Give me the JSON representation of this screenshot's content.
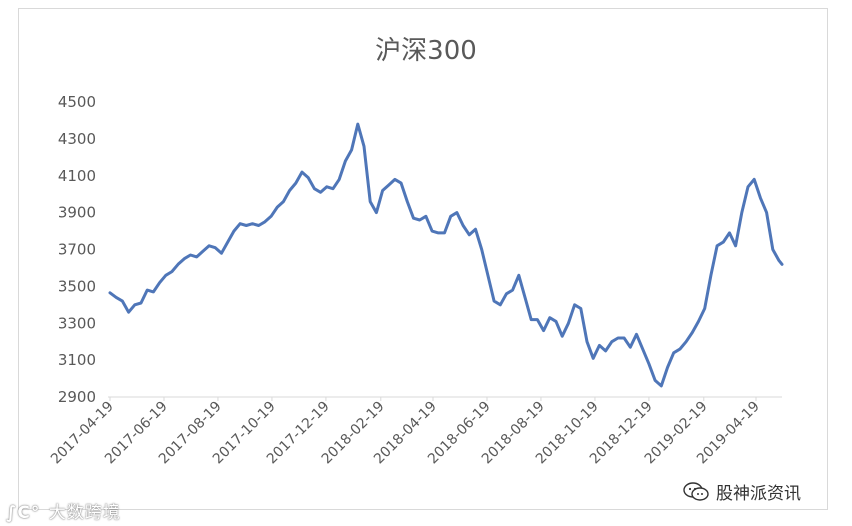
{
  "chart_data": {
    "type": "line",
    "title": "沪深300",
    "xlabel": "",
    "ylabel": "",
    "ylim": [
      2900,
      4500
    ],
    "yticks": [
      2900,
      3100,
      3300,
      3500,
      3700,
      3900,
      4100,
      4300,
      4500
    ],
    "xticks": [
      "2017-04-19",
      "2017-06-19",
      "2017-08-19",
      "2017-10-19",
      "2017-12-19",
      "2018-02-19",
      "2018-04-19",
      "2018-06-19",
      "2018-08-19",
      "2018-10-19",
      "2018-12-19",
      "2019-02-19",
      "2019-04-19"
    ],
    "grid": false,
    "line_color": "#4f76b8",
    "series": [
      {
        "name": "",
        "points": [
          [
            "2017-04-19",
            3465
          ],
          [
            "2017-04-26",
            3440
          ],
          [
            "2017-05-03",
            3420
          ],
          [
            "2017-05-10",
            3360
          ],
          [
            "2017-05-17",
            3400
          ],
          [
            "2017-05-24",
            3410
          ],
          [
            "2017-05-31",
            3480
          ],
          [
            "2017-06-07",
            3470
          ],
          [
            "2017-06-14",
            3520
          ],
          [
            "2017-06-21",
            3560
          ],
          [
            "2017-06-28",
            3580
          ],
          [
            "2017-07-05",
            3620
          ],
          [
            "2017-07-12",
            3650
          ],
          [
            "2017-07-19",
            3670
          ],
          [
            "2017-07-26",
            3660
          ],
          [
            "2017-08-02",
            3690
          ],
          [
            "2017-08-09",
            3720
          ],
          [
            "2017-08-16",
            3710
          ],
          [
            "2017-08-23",
            3680
          ],
          [
            "2017-08-30",
            3740
          ],
          [
            "2017-09-06",
            3800
          ],
          [
            "2017-09-13",
            3840
          ],
          [
            "2017-09-20",
            3830
          ],
          [
            "2017-09-27",
            3840
          ],
          [
            "2017-10-04",
            3830
          ],
          [
            "2017-10-11",
            3850
          ],
          [
            "2017-10-18",
            3880
          ],
          [
            "2017-10-25",
            3930
          ],
          [
            "2017-11-01",
            3960
          ],
          [
            "2017-11-08",
            4020
          ],
          [
            "2017-11-15",
            4060
          ],
          [
            "2017-11-22",
            4120
          ],
          [
            "2017-11-29",
            4090
          ],
          [
            "2017-12-06",
            4030
          ],
          [
            "2017-12-13",
            4010
          ],
          [
            "2017-12-20",
            4040
          ],
          [
            "2017-12-27",
            4030
          ],
          [
            "2018-01-03",
            4080
          ],
          [
            "2018-01-10",
            4180
          ],
          [
            "2018-01-17",
            4240
          ],
          [
            "2018-01-24",
            4380
          ],
          [
            "2018-01-31",
            4260
          ],
          [
            "2018-02-07",
            3960
          ],
          [
            "2018-02-14",
            3900
          ],
          [
            "2018-02-21",
            4020
          ],
          [
            "2018-02-28",
            4050
          ],
          [
            "2018-03-07",
            4080
          ],
          [
            "2018-03-14",
            4060
          ],
          [
            "2018-03-21",
            3960
          ],
          [
            "2018-03-28",
            3870
          ],
          [
            "2018-04-04",
            3860
          ],
          [
            "2018-04-11",
            3880
          ],
          [
            "2018-04-18",
            3800
          ],
          [
            "2018-04-25",
            3790
          ],
          [
            "2018-05-02",
            3790
          ],
          [
            "2018-05-09",
            3880
          ],
          [
            "2018-05-16",
            3900
          ],
          [
            "2018-05-23",
            3830
          ],
          [
            "2018-05-30",
            3780
          ],
          [
            "2018-06-06",
            3810
          ],
          [
            "2018-06-13",
            3700
          ],
          [
            "2018-06-20",
            3560
          ],
          [
            "2018-06-27",
            3420
          ],
          [
            "2018-07-04",
            3400
          ],
          [
            "2018-07-11",
            3460
          ],
          [
            "2018-07-18",
            3480
          ],
          [
            "2018-07-25",
            3560
          ],
          [
            "2018-08-01",
            3440
          ],
          [
            "2018-08-08",
            3320
          ],
          [
            "2018-08-15",
            3320
          ],
          [
            "2018-08-22",
            3260
          ],
          [
            "2018-08-29",
            3330
          ],
          [
            "2018-09-05",
            3310
          ],
          [
            "2018-09-12",
            3230
          ],
          [
            "2018-09-19",
            3300
          ],
          [
            "2018-09-26",
            3400
          ],
          [
            "2018-10-03",
            3380
          ],
          [
            "2018-10-10",
            3200
          ],
          [
            "2018-10-17",
            3110
          ],
          [
            "2018-10-24",
            3180
          ],
          [
            "2018-10-31",
            3150
          ],
          [
            "2018-11-07",
            3200
          ],
          [
            "2018-11-14",
            3220
          ],
          [
            "2018-11-21",
            3220
          ],
          [
            "2018-11-28",
            3170
          ],
          [
            "2018-12-05",
            3240
          ],
          [
            "2018-12-12",
            3160
          ],
          [
            "2018-12-19",
            3080
          ],
          [
            "2018-12-26",
            2990
          ],
          [
            "2019-01-02",
            2960
          ],
          [
            "2019-01-09",
            3060
          ],
          [
            "2019-01-16",
            3140
          ],
          [
            "2019-01-23",
            3160
          ],
          [
            "2019-01-30",
            3200
          ],
          [
            "2019-02-06",
            3250
          ],
          [
            "2019-02-13",
            3310
          ],
          [
            "2019-02-20",
            3380
          ],
          [
            "2019-02-27",
            3560
          ],
          [
            "2019-03-06",
            3720
          ],
          [
            "2019-03-13",
            3740
          ],
          [
            "2019-03-20",
            3790
          ],
          [
            "2019-03-27",
            3720
          ],
          [
            "2019-04-03",
            3900
          ],
          [
            "2019-04-10",
            4040
          ],
          [
            "2019-04-17",
            4080
          ],
          [
            "2019-04-24",
            3980
          ],
          [
            "2019-05-01",
            3900
          ],
          [
            "2019-05-08",
            3700
          ],
          [
            "2019-05-15",
            3640
          ],
          [
            "2019-05-22",
            3620
          ]
        ]
      }
    ]
  },
  "watermarks": {
    "left_text": "大数跨境",
    "left_icon": "∫C°",
    "right_text": "股神派资讯"
  }
}
